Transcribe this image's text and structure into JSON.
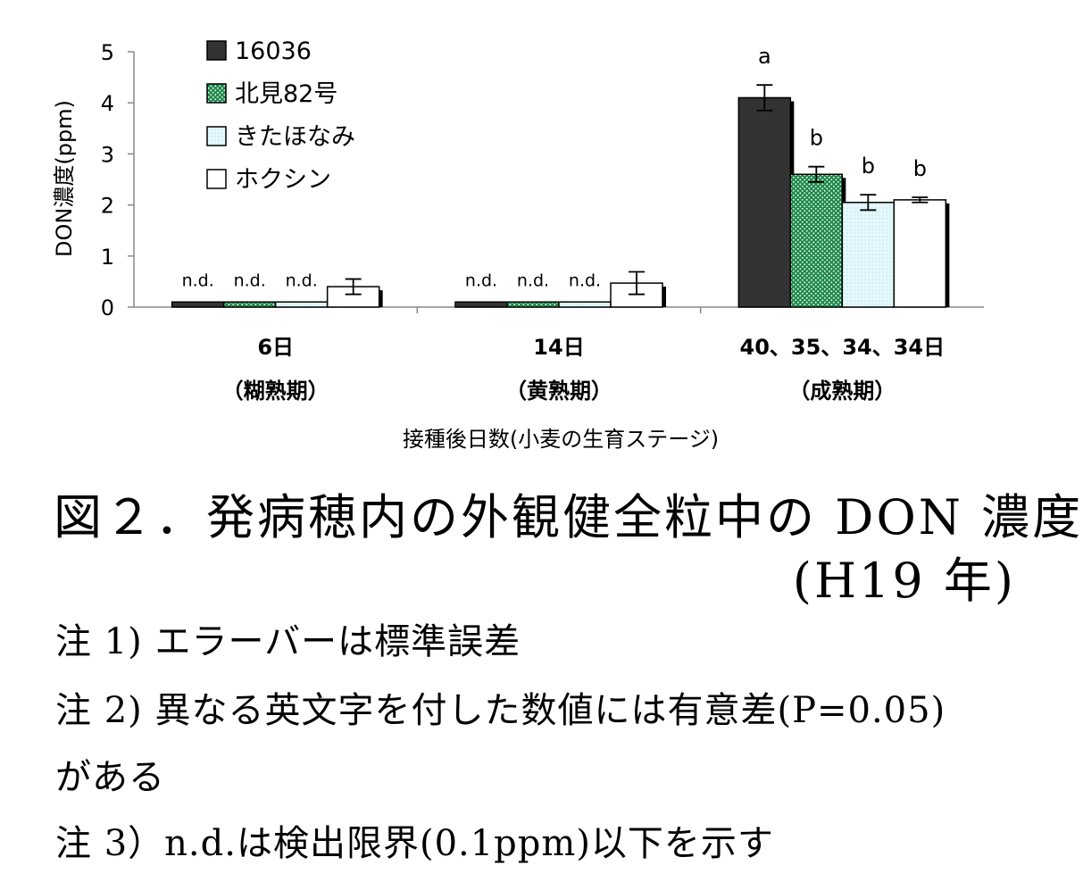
{
  "chart_data": {
    "type": "bar",
    "ylabel": "DON濃度(ppm)",
    "xlabel": "接種後日数(小麦の生育ステージ)",
    "ylim": [
      0,
      5
    ],
    "yticks": [
      "0",
      "1",
      "2",
      "3",
      "4",
      "5"
    ],
    "categories": [
      {
        "line1": "6日",
        "line2": "（糊熟期）"
      },
      {
        "line1": "14日",
        "line2": "（黄熟期）"
      },
      {
        "line1": "40、35、34、34日",
        "line2": "（成熟期）"
      }
    ],
    "series": [
      {
        "name": "16036",
        "color": "#333333",
        "pattern": "solid",
        "values": [
          0.1,
          0.1,
          4.1
        ],
        "errors": [
          0,
          0,
          0.25
        ],
        "labels": [
          "n.d.",
          "n.d.",
          "a"
        ]
      },
      {
        "name": "北見82号",
        "color": "#1f8a4c",
        "pattern": "dots",
        "values": [
          0.1,
          0.1,
          2.6
        ],
        "errors": [
          0,
          0,
          0.15
        ],
        "labels": [
          "n.d.",
          "n.d.",
          "b"
        ]
      },
      {
        "name": "きたほなみ",
        "color": "#dff6fb",
        "pattern": "light",
        "values": [
          0.1,
          0.1,
          2.05
        ],
        "errors": [
          0,
          0,
          0.15
        ],
        "labels": [
          "n.d.",
          "n.d.",
          "b"
        ]
      },
      {
        "name": "ホクシン",
        "color": "#ffffff",
        "pattern": "white",
        "values": [
          0.4,
          0.47,
          2.1
        ],
        "errors": [
          0.15,
          0.22,
          0.05
        ],
        "labels": [
          "",
          "",
          "b"
        ]
      }
    ],
    "legend": "top-left"
  },
  "caption": {
    "title": "図２．発病穂内の外観健全粒中の DON 濃度",
    "year": "(H19 年)"
  },
  "notes": {
    "note1": "注 1) エラーバーは標準誤差",
    "note2": "注 2) 異なる英文字を付した数値には有意差(P=0.05)",
    "note2b": "がある",
    "note3": "注 3）n.d.は検出限界(0.1ppm)以下を示す"
  }
}
